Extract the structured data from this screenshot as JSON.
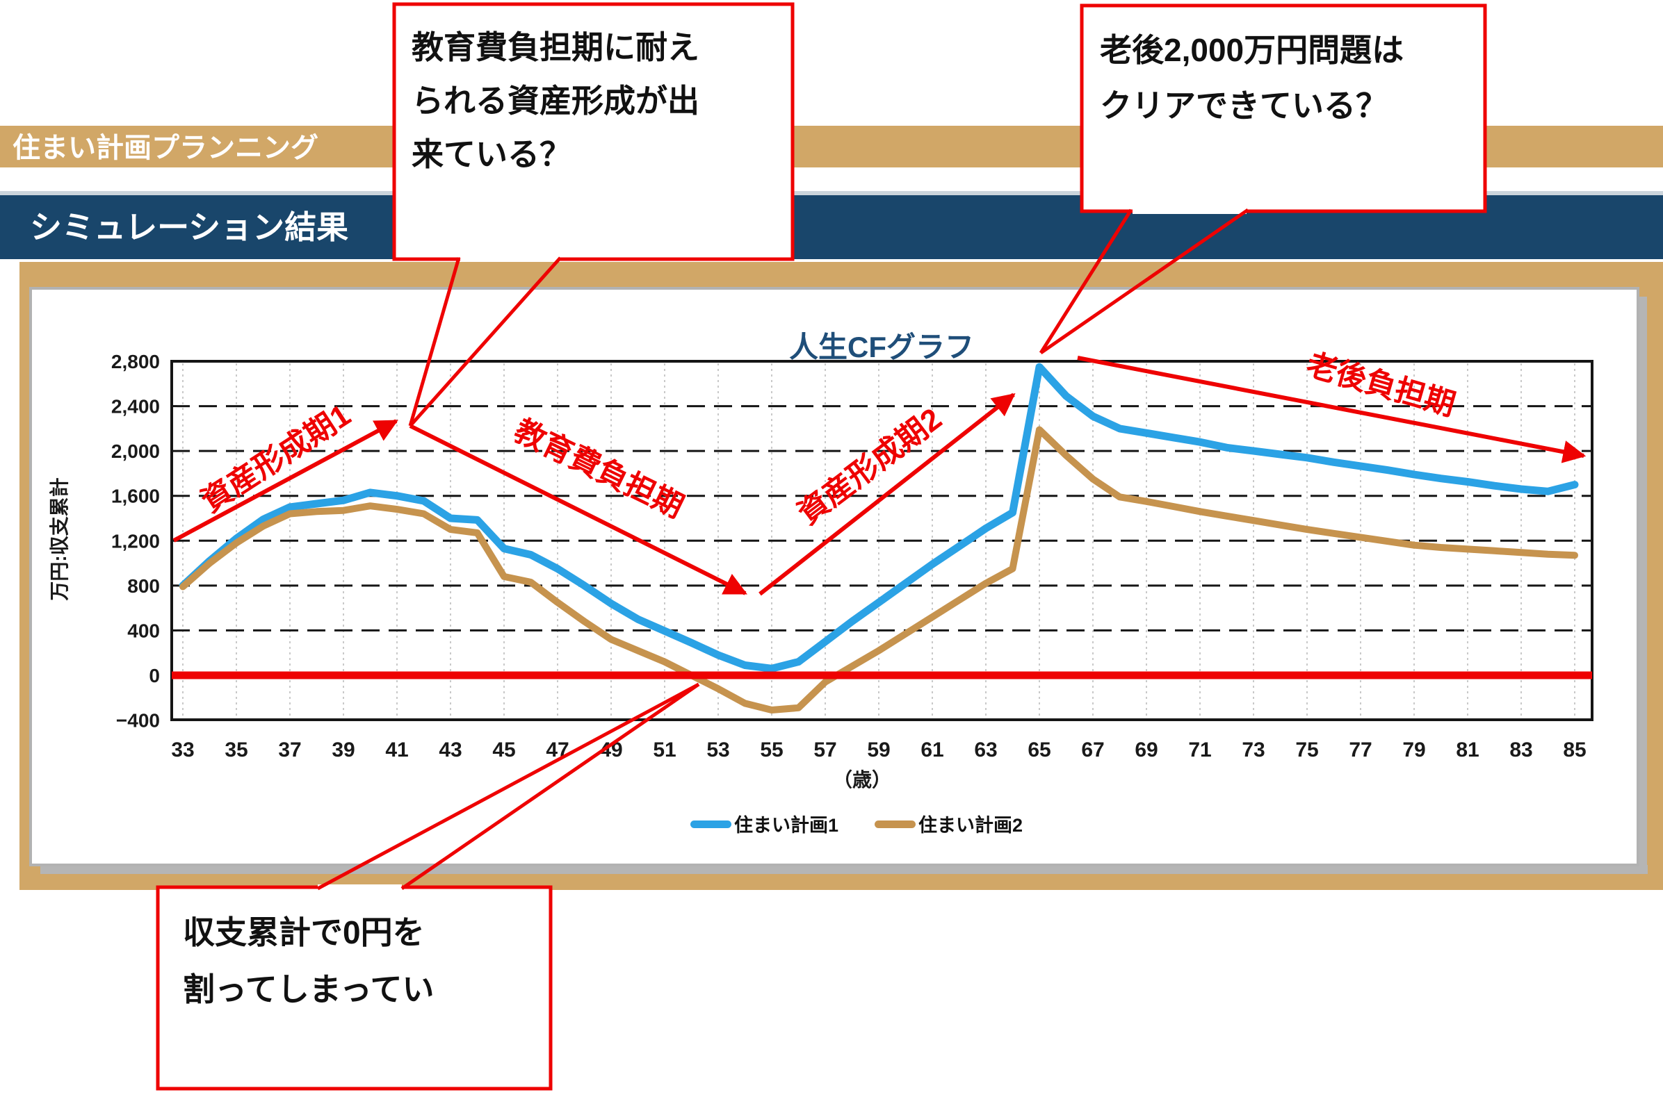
{
  "header": {
    "app_title": "住まい計画プランニング",
    "section_title": "シミュレーション結果"
  },
  "chart_data": {
    "type": "line",
    "title": "人生CFグラフ",
    "ylabel": "万円:収支累計",
    "xlabel": "（歳）",
    "ylim": [
      -400,
      2800
    ],
    "grid": "on",
    "legend_position": "bottom",
    "x_tick_labels": [
      "33",
      "35",
      "37",
      "39",
      "41",
      "43",
      "45",
      "47",
      "49",
      "51",
      "53",
      "55",
      "57",
      "59",
      "61",
      "63",
      "65",
      "67",
      "69",
      "71",
      "73",
      "75",
      "77",
      "79",
      "81",
      "83",
      "85"
    ],
    "y_tick_values": [
      2800,
      2400,
      2000,
      1600,
      1200,
      800,
      400,
      0,
      -400
    ],
    "y_tick_labels": [
      "2,800",
      "2,400",
      "2,000",
      "1,600",
      "1,200",
      "800",
      "400",
      "0",
      "−400"
    ],
    "x": [
      33,
      34,
      35,
      36,
      37,
      38,
      39,
      40,
      41,
      42,
      43,
      44,
      45,
      46,
      47,
      48,
      49,
      50,
      51,
      52,
      53,
      54,
      55,
      56,
      57,
      58,
      59,
      60,
      61,
      62,
      63,
      64,
      65,
      66,
      67,
      68,
      69,
      70,
      71,
      72,
      73,
      74,
      75,
      76,
      77,
      78,
      79,
      80,
      81,
      82,
      83,
      84,
      85
    ],
    "series": [
      {
        "name": "住まい計画1",
        "color": "#2ba2e5",
        "values": [
          800,
          1020,
          1220,
          1390,
          1500,
          1530,
          1560,
          1630,
          1600,
          1555,
          1400,
          1385,
          1130,
          1075,
          950,
          800,
          640,
          500,
          395,
          290,
          180,
          90,
          60,
          120,
          300,
          480,
          650,
          820,
          990,
          1150,
          1310,
          1450,
          2750,
          2490,
          2310,
          2200,
          2160,
          2120,
          2080,
          2030,
          2000,
          1970,
          1940,
          1900,
          1865,
          1830,
          1790,
          1755,
          1725,
          1690,
          1660,
          1640,
          1700
        ]
      },
      {
        "name": "住まい計画2",
        "color": "#c6934e",
        "values": [
          790,
          1000,
          1180,
          1330,
          1440,
          1460,
          1470,
          1510,
          1480,
          1440,
          1300,
          1270,
          880,
          830,
          650,
          480,
          320,
          220,
          120,
          0,
          -120,
          -250,
          -310,
          -290,
          -60,
          80,
          220,
          370,
          520,
          670,
          820,
          950,
          2190,
          1960,
          1750,
          1590,
          1550,
          1505,
          1460,
          1420,
          1380,
          1340,
          1300,
          1265,
          1230,
          1195,
          1160,
          1140,
          1125,
          1110,
          1095,
          1080,
          1070
        ]
      }
    ],
    "zero_line_color": "#ee0202"
  },
  "annotations": {
    "phase1": "資産形成期1",
    "phase2": "教育費負担期",
    "phase3": "資産形成期2",
    "phase4": "老後負担期",
    "callout_education": {
      "line1": "教育費負担期に耐え",
      "line2": "られる資産形成が出",
      "line3": "来ている？"
    },
    "callout_retirement": {
      "line1": "老後2,000万円問題は",
      "line2": "クリアできている？"
    },
    "callout_zero": {
      "line1": "収支累計で0円を",
      "line2": "割ってしまってい"
    }
  },
  "colors": {
    "header_tan": "#d1a767",
    "header_navy": "#19466b",
    "frame_tan": "#d1a767",
    "shadow_gray": "#b5b5b5",
    "title_navy": "#1f4e79",
    "annotation_red": "#ee0202",
    "series1_blue": "#2ba2e5",
    "series2_tan": "#c6934e"
  }
}
